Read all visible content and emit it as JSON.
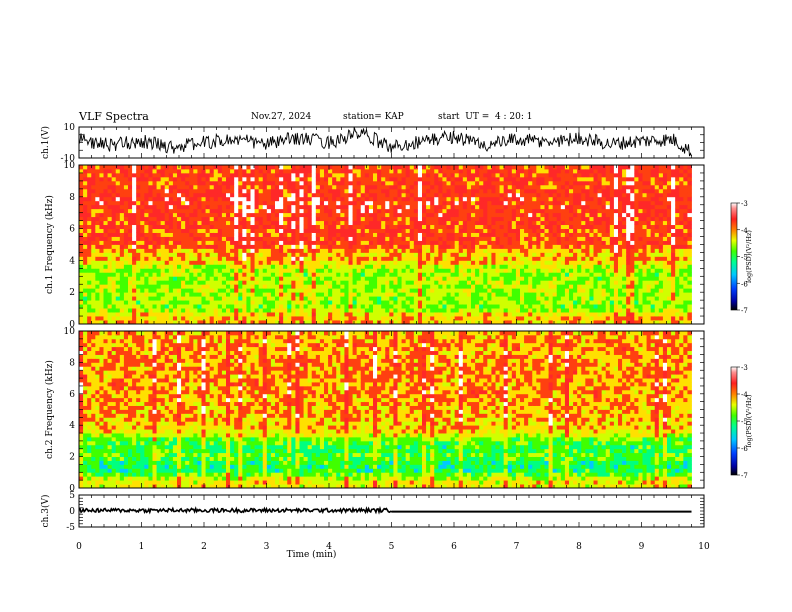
{
  "header": {
    "title": "VLF Spectra",
    "date": "Nov.27, 2024",
    "station_label": "station= KAP",
    "start_label": "start  UT =  4 : 20: 1"
  },
  "colors": {
    "trace": "#000000",
    "background": "#ffffff",
    "colormap": [
      "#0a0a8c",
      "#0050ff",
      "#00c8ff",
      "#00ff80",
      "#40ff00",
      "#d0ff00",
      "#ffe000",
      "#ff4010",
      "#ff2828",
      "#ffffff"
    ]
  },
  "chart_data": [
    {
      "type": "line",
      "panel": "ch1-waveform",
      "ylabel": "ch.1(V)",
      "ylim": [
        -10,
        10
      ],
      "yticks": [
        "10",
        "-10"
      ],
      "x": [
        0,
        0.5,
        1,
        1.5,
        2,
        2.5,
        3,
        3.5,
        4,
        4.5,
        5,
        5.5,
        6,
        6.5,
        7,
        7.5,
        8,
        8.5,
        9,
        9.5,
        9.8
      ],
      "values": [
        2,
        -2,
        1,
        -3,
        0,
        2,
        -1,
        3,
        0,
        6,
        -3,
        1,
        4,
        -2,
        2,
        0,
        3,
        -1,
        1,
        2,
        -6
      ],
      "xlim": [
        0,
        10
      ]
    },
    {
      "type": "heatmap",
      "panel": "ch1-spectrogram",
      "ylabel": "ch.1 Frequency (kHz)",
      "ylim": [
        0,
        10
      ],
      "yticks": [
        "0",
        "2",
        "4",
        "6",
        "8",
        "10"
      ],
      "xlim": [
        0,
        10
      ],
      "data_extent_min": 9.8,
      "colorbar": {
        "label": "log(PSD)(V²/Hz)",
        "ticks": [
          "-3",
          "-4",
          "-5",
          "-6",
          "-7"
        ],
        "range": [
          -7,
          -3
        ]
      },
      "band_profile_log_psd": [
        {
          "f": 0.5,
          "v": -4.4
        },
        {
          "f": 1.0,
          "v": -5.0
        },
        {
          "f": 1.5,
          "v": -5.0
        },
        {
          "f": 2.0,
          "v": -4.9
        },
        {
          "f": 2.5,
          "v": -4.9
        },
        {
          "f": 3.0,
          "v": -5.0
        },
        {
          "f": 3.5,
          "v": -4.9
        },
        {
          "f": 4.0,
          "v": -4.3
        },
        {
          "f": 4.5,
          "v": -4.4
        },
        {
          "f": 5.0,
          "v": -3.9
        },
        {
          "f": 6.0,
          "v": -3.9
        },
        {
          "f": 7.0,
          "v": -3.8
        },
        {
          "f": 8.0,
          "v": -3.8
        },
        {
          "f": 9.0,
          "v": -3.9
        },
        {
          "f": 10.0,
          "v": -3.9
        }
      ]
    },
    {
      "type": "heatmap",
      "panel": "ch2-spectrogram",
      "ylabel": "ch.2 Frequency (kHz)",
      "ylim": [
        0,
        10
      ],
      "yticks": [
        "0",
        "2",
        "4",
        "6",
        "8",
        "10"
      ],
      "xlim": [
        0,
        10
      ],
      "data_extent_min": 9.8,
      "colorbar": {
        "label": "log(PSD)(V²/Hz)",
        "ticks": [
          "-3",
          "-4",
          "-5",
          "-6",
          "-7"
        ],
        "range": [
          -7,
          -3
        ]
      },
      "band_profile_log_psd": [
        {
          "f": 0.5,
          "v": -4.6
        },
        {
          "f": 1.0,
          "v": -5.4
        },
        {
          "f": 1.5,
          "v": -5.5
        },
        {
          "f": 2.0,
          "v": -5.2
        },
        {
          "f": 2.5,
          "v": -5.4
        },
        {
          "f": 3.0,
          "v": -5.3
        },
        {
          "f": 3.5,
          "v": -4.6
        },
        {
          "f": 4.0,
          "v": -4.4
        },
        {
          "f": 5.0,
          "v": -4.3
        },
        {
          "f": 6.0,
          "v": -4.2
        },
        {
          "f": 7.0,
          "v": -4.2
        },
        {
          "f": 8.0,
          "v": -4.2
        },
        {
          "f": 9.0,
          "v": -4.2
        },
        {
          "f": 10.0,
          "v": -4.3
        }
      ]
    },
    {
      "type": "line",
      "panel": "ch3-waveform",
      "ylabel": "ch.3(V)",
      "ylim": [
        -5,
        5
      ],
      "yticks": [
        "5",
        "0",
        "-5"
      ],
      "x": [
        0,
        5,
        5,
        9.8
      ],
      "values": [
        0.2,
        0.2,
        -0.2,
        -0.2
      ],
      "xlim": [
        0,
        10
      ],
      "xlabel": "Time (min)",
      "xticks": [
        "0",
        "1",
        "2",
        "3",
        "4",
        "5",
        "6",
        "7",
        "8",
        "9",
        "10"
      ]
    }
  ]
}
